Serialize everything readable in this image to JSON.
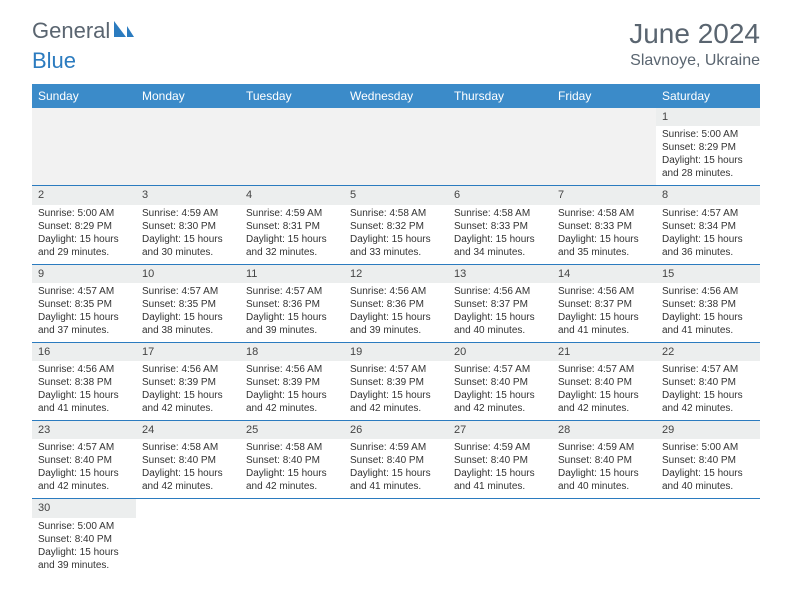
{
  "logo": {
    "part1": "General",
    "part2": "Blue"
  },
  "title": "June 2024",
  "location": "Slavnoye, Ukraine",
  "colors": {
    "header_bg": "#3b8bc9",
    "rule": "#2b7bbf",
    "strip": "#eceeee",
    "logo_gray": "#5a6570",
    "logo_blue": "#2b7bbf"
  },
  "dayHeaders": [
    "Sunday",
    "Monday",
    "Tuesday",
    "Wednesday",
    "Thursday",
    "Friday",
    "Saturday"
  ],
  "weeks": [
    [
      {
        "empty": true
      },
      {
        "empty": true
      },
      {
        "empty": true
      },
      {
        "empty": true
      },
      {
        "empty": true
      },
      {
        "empty": true
      },
      {
        "date": "1",
        "sunrise": "Sunrise: 5:00 AM",
        "sunset": "Sunset: 8:29 PM",
        "daylight1": "Daylight: 15 hours",
        "daylight2": "and 28 minutes."
      }
    ],
    [
      {
        "date": "2",
        "sunrise": "Sunrise: 5:00 AM",
        "sunset": "Sunset: 8:29 PM",
        "daylight1": "Daylight: 15 hours",
        "daylight2": "and 29 minutes."
      },
      {
        "date": "3",
        "sunrise": "Sunrise: 4:59 AM",
        "sunset": "Sunset: 8:30 PM",
        "daylight1": "Daylight: 15 hours",
        "daylight2": "and 30 minutes."
      },
      {
        "date": "4",
        "sunrise": "Sunrise: 4:59 AM",
        "sunset": "Sunset: 8:31 PM",
        "daylight1": "Daylight: 15 hours",
        "daylight2": "and 32 minutes."
      },
      {
        "date": "5",
        "sunrise": "Sunrise: 4:58 AM",
        "sunset": "Sunset: 8:32 PM",
        "daylight1": "Daylight: 15 hours",
        "daylight2": "and 33 minutes."
      },
      {
        "date": "6",
        "sunrise": "Sunrise: 4:58 AM",
        "sunset": "Sunset: 8:33 PM",
        "daylight1": "Daylight: 15 hours",
        "daylight2": "and 34 minutes."
      },
      {
        "date": "7",
        "sunrise": "Sunrise: 4:58 AM",
        "sunset": "Sunset: 8:33 PM",
        "daylight1": "Daylight: 15 hours",
        "daylight2": "and 35 minutes."
      },
      {
        "date": "8",
        "sunrise": "Sunrise: 4:57 AM",
        "sunset": "Sunset: 8:34 PM",
        "daylight1": "Daylight: 15 hours",
        "daylight2": "and 36 minutes."
      }
    ],
    [
      {
        "date": "9",
        "sunrise": "Sunrise: 4:57 AM",
        "sunset": "Sunset: 8:35 PM",
        "daylight1": "Daylight: 15 hours",
        "daylight2": "and 37 minutes."
      },
      {
        "date": "10",
        "sunrise": "Sunrise: 4:57 AM",
        "sunset": "Sunset: 8:35 PM",
        "daylight1": "Daylight: 15 hours",
        "daylight2": "and 38 minutes."
      },
      {
        "date": "11",
        "sunrise": "Sunrise: 4:57 AM",
        "sunset": "Sunset: 8:36 PM",
        "daylight1": "Daylight: 15 hours",
        "daylight2": "and 39 minutes."
      },
      {
        "date": "12",
        "sunrise": "Sunrise: 4:56 AM",
        "sunset": "Sunset: 8:36 PM",
        "daylight1": "Daylight: 15 hours",
        "daylight2": "and 39 minutes."
      },
      {
        "date": "13",
        "sunrise": "Sunrise: 4:56 AM",
        "sunset": "Sunset: 8:37 PM",
        "daylight1": "Daylight: 15 hours",
        "daylight2": "and 40 minutes."
      },
      {
        "date": "14",
        "sunrise": "Sunrise: 4:56 AM",
        "sunset": "Sunset: 8:37 PM",
        "daylight1": "Daylight: 15 hours",
        "daylight2": "and 41 minutes."
      },
      {
        "date": "15",
        "sunrise": "Sunrise: 4:56 AM",
        "sunset": "Sunset: 8:38 PM",
        "daylight1": "Daylight: 15 hours",
        "daylight2": "and 41 minutes."
      }
    ],
    [
      {
        "date": "16",
        "sunrise": "Sunrise: 4:56 AM",
        "sunset": "Sunset: 8:38 PM",
        "daylight1": "Daylight: 15 hours",
        "daylight2": "and 41 minutes."
      },
      {
        "date": "17",
        "sunrise": "Sunrise: 4:56 AM",
        "sunset": "Sunset: 8:39 PM",
        "daylight1": "Daylight: 15 hours",
        "daylight2": "and 42 minutes."
      },
      {
        "date": "18",
        "sunrise": "Sunrise: 4:56 AM",
        "sunset": "Sunset: 8:39 PM",
        "daylight1": "Daylight: 15 hours",
        "daylight2": "and 42 minutes."
      },
      {
        "date": "19",
        "sunrise": "Sunrise: 4:57 AM",
        "sunset": "Sunset: 8:39 PM",
        "daylight1": "Daylight: 15 hours",
        "daylight2": "and 42 minutes."
      },
      {
        "date": "20",
        "sunrise": "Sunrise: 4:57 AM",
        "sunset": "Sunset: 8:40 PM",
        "daylight1": "Daylight: 15 hours",
        "daylight2": "and 42 minutes."
      },
      {
        "date": "21",
        "sunrise": "Sunrise: 4:57 AM",
        "sunset": "Sunset: 8:40 PM",
        "daylight1": "Daylight: 15 hours",
        "daylight2": "and 42 minutes."
      },
      {
        "date": "22",
        "sunrise": "Sunrise: 4:57 AM",
        "sunset": "Sunset: 8:40 PM",
        "daylight1": "Daylight: 15 hours",
        "daylight2": "and 42 minutes."
      }
    ],
    [
      {
        "date": "23",
        "sunrise": "Sunrise: 4:57 AM",
        "sunset": "Sunset: 8:40 PM",
        "daylight1": "Daylight: 15 hours",
        "daylight2": "and 42 minutes."
      },
      {
        "date": "24",
        "sunrise": "Sunrise: 4:58 AM",
        "sunset": "Sunset: 8:40 PM",
        "daylight1": "Daylight: 15 hours",
        "daylight2": "and 42 minutes."
      },
      {
        "date": "25",
        "sunrise": "Sunrise: 4:58 AM",
        "sunset": "Sunset: 8:40 PM",
        "daylight1": "Daylight: 15 hours",
        "daylight2": "and 42 minutes."
      },
      {
        "date": "26",
        "sunrise": "Sunrise: 4:59 AM",
        "sunset": "Sunset: 8:40 PM",
        "daylight1": "Daylight: 15 hours",
        "daylight2": "and 41 minutes."
      },
      {
        "date": "27",
        "sunrise": "Sunrise: 4:59 AM",
        "sunset": "Sunset: 8:40 PM",
        "daylight1": "Daylight: 15 hours",
        "daylight2": "and 41 minutes."
      },
      {
        "date": "28",
        "sunrise": "Sunrise: 4:59 AM",
        "sunset": "Sunset: 8:40 PM",
        "daylight1": "Daylight: 15 hours",
        "daylight2": "and 40 minutes."
      },
      {
        "date": "29",
        "sunrise": "Sunrise: 5:00 AM",
        "sunset": "Sunset: 8:40 PM",
        "daylight1": "Daylight: 15 hours",
        "daylight2": "and 40 minutes."
      }
    ],
    [
      {
        "date": "30",
        "sunrise": "Sunrise: 5:00 AM",
        "sunset": "Sunset: 8:40 PM",
        "daylight1": "Daylight: 15 hours",
        "daylight2": "and 39 minutes."
      },
      {
        "empty": true,
        "trailing": true
      },
      {
        "empty": true,
        "trailing": true
      },
      {
        "empty": true,
        "trailing": true
      },
      {
        "empty": true,
        "trailing": true
      },
      {
        "empty": true,
        "trailing": true
      },
      {
        "empty": true,
        "trailing": true
      }
    ]
  ]
}
